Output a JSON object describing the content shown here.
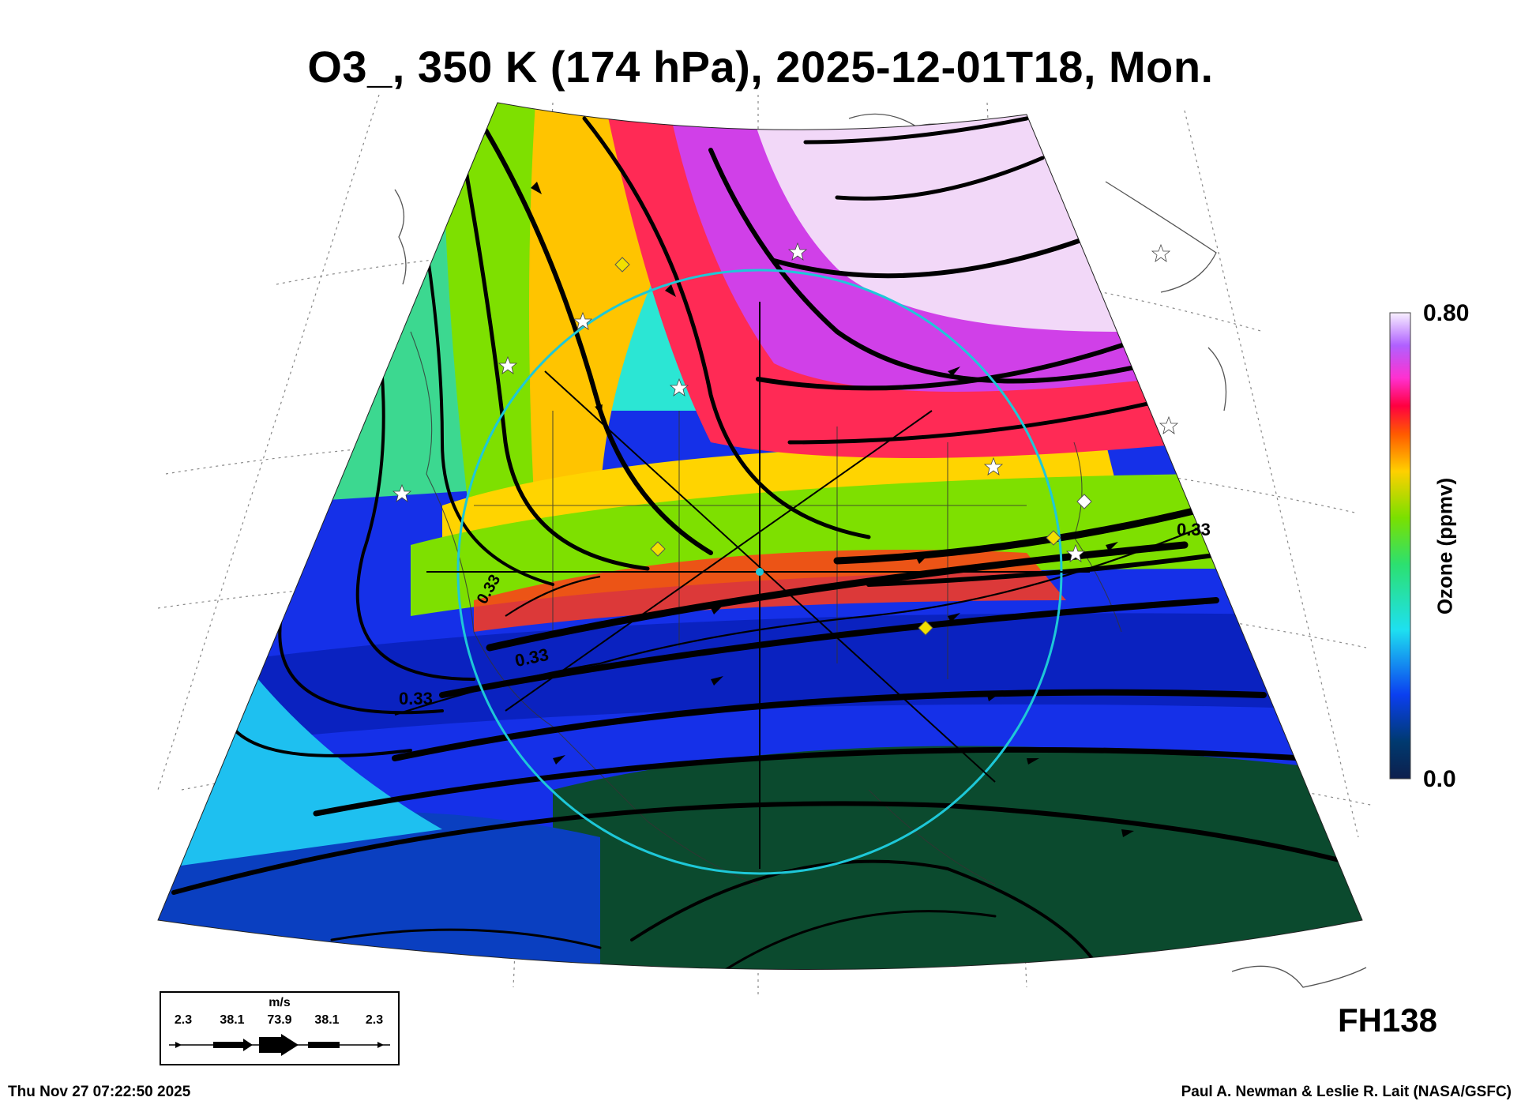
{
  "title": "O3_, 350 K (174 hPa), 2025-12-01T18, Mon.",
  "colorbar": {
    "max_label": "0.80",
    "min_label": "0.0",
    "title": "Ozone (ppmv)"
  },
  "contour_labels": [
    "0.33",
    "0.33",
    "0.33",
    "0.33"
  ],
  "forecast_hour": "FH138",
  "wind_legend": {
    "unit": "m/s",
    "values": [
      "2.3",
      "38.1",
      "73.9",
      "38.1",
      "2.3"
    ]
  },
  "footer": {
    "timestamp": "Thu Nov 27 07:22:50 2025",
    "credit": "Paul A. Newman & Leslie R. Lait (NASA/GSFC)"
  },
  "colors": {
    "circle": "#1ec8d8",
    "marker_diamond": "#f2e000",
    "marker_star": "#ffffff"
  },
  "icons": [
    "wind-arrow-icon",
    "star-marker-icon",
    "diamond-marker-icon"
  ]
}
